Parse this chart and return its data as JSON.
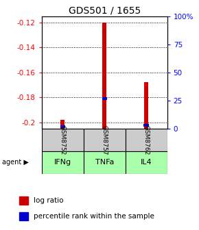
{
  "title": "GDS501 / 1655",
  "samples": [
    "GSM8752",
    "GSM8757",
    "GSM8762"
  ],
  "agents": [
    "IFNg",
    "TNFa",
    "IL4"
  ],
  "log_ratios": [
    -0.198,
    -0.12,
    -0.168
  ],
  "percentile_ranks_pct": [
    2.0,
    27.0,
    3.0
  ],
  "ylim": [
    -0.205,
    -0.115
  ],
  "yticks_left": [
    -0.12,
    -0.14,
    -0.16,
    -0.18,
    -0.2
  ],
  "yticks_right_pct": [
    100,
    75,
    50,
    25,
    0
  ],
  "bar_color_red": "#cc0000",
  "bar_color_blue": "#0000cc",
  "agent_color": "#aaffaa",
  "sample_color": "#cccccc",
  "legend_red": "log ratio",
  "legend_blue": "percentile rank within the sample",
  "agent_label": "agent"
}
